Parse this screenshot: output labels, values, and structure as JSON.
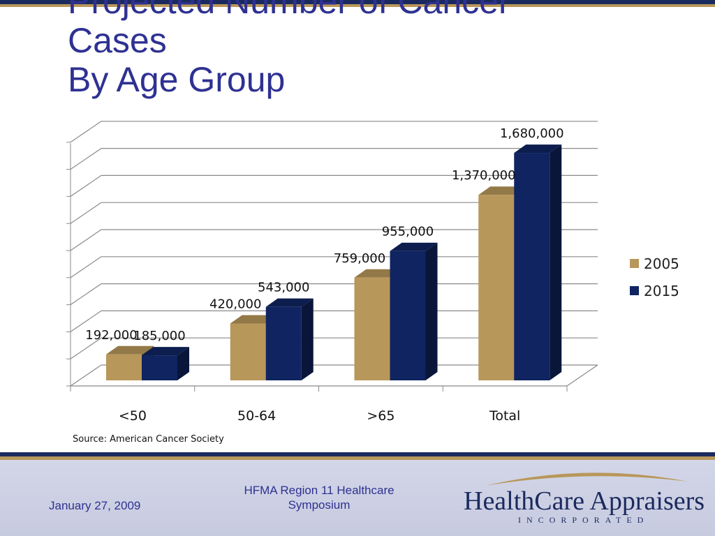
{
  "slide": {
    "title_lines": [
      "Projected Number of Cancer",
      "Cases",
      "By Age Group"
    ],
    "source": "Source: American Cancer Society"
  },
  "footer": {
    "date": "January 27, 2009",
    "event": "HFMA Region 11 Healthcare Symposium",
    "logo_name": "HealthCare Appraisers",
    "logo_sub": "INCORPORATED"
  },
  "colors": {
    "title": "#2e3192",
    "series_2005": "#b8975a",
    "series_2015": "#0f2461",
    "navy_bar": "#1b2a5e",
    "gold_bar": "#b8975a"
  },
  "chart_data": {
    "type": "bar",
    "categories": [
      "<50",
      "50-64",
      ">65",
      "Total"
    ],
    "series": [
      {
        "name": "2005",
        "values": [
          192000,
          420000,
          759000,
          1370000
        ],
        "labels": [
          "192,000",
          "420,000",
          "759,000",
          "1,370,000"
        ],
        "color": "#b8975a"
      },
      {
        "name": "2015",
        "values": [
          185000,
          543000,
          955000,
          1680000
        ],
        "labels": [
          "185,000",
          "543,000",
          "955,000",
          "1,680,000"
        ],
        "color": "#0f2461"
      }
    ],
    "title": "",
    "xlabel": "",
    "ylabel": "",
    "ylim": [
      0,
      1800000
    ],
    "grid": true,
    "three_d": true,
    "legend_position": "right"
  }
}
